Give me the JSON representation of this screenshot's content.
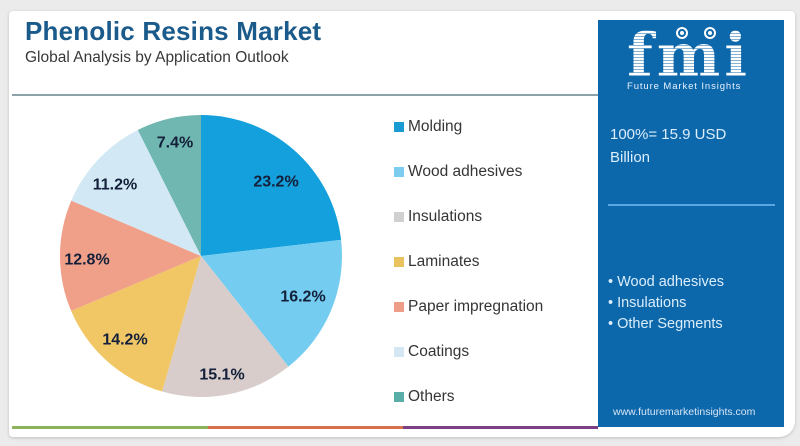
{
  "header": {
    "title": "Phenolic Resins Market",
    "subtitle": "Global Analysis by Application Outlook"
  },
  "chart_data": {
    "type": "pie",
    "title": "Phenolic Resins Market",
    "subtitle": "Global Analysis by Application Outlook",
    "categories": [
      "Molding",
      "Wood adhesives",
      "Insulations",
      "Laminates",
      "Paper impregnation",
      "Coatings",
      "Others"
    ],
    "values": [
      23.2,
      16.2,
      15.1,
      14.2,
      12.8,
      11.2,
      7.4
    ],
    "labels": [
      "23.2%",
      "16.2%",
      "15.1%",
      "14.2%",
      "12.8%",
      "11.2%",
      "7.4%"
    ],
    "unit": "%",
    "colors": [
      "#13a0dc",
      "#74cdf0",
      "#d8cdcb",
      "#f1c766",
      "#f0a088",
      "#d2e9f5",
      "#70b7b1"
    ],
    "start_angle_deg": 0,
    "direction": "clockwise",
    "legend_position": "right",
    "label_positions": [
      [
        276,
        182
      ],
      [
        303,
        297
      ],
      [
        222,
        375
      ],
      [
        125,
        340
      ],
      [
        87,
        260
      ],
      [
        115,
        185
      ],
      [
        175,
        143
      ]
    ],
    "total": "100%= 15.9 USD Billion"
  },
  "legend": {
    "items": [
      {
        "label": "Molding",
        "color": "#1b9bd4"
      },
      {
        "label": "Wood adhesives",
        "color": "#7cccf0"
      },
      {
        "label": "Insulations",
        "color": "#d0d0d0"
      },
      {
        "label": "Laminates",
        "color": "#e9c35f"
      },
      {
        "label": "Paper impregnation",
        "color": "#ee9d88"
      },
      {
        "label": "Coatings",
        "color": "#d3e8f3"
      },
      {
        "label": "Others",
        "color": "#5aaea8"
      }
    ]
  },
  "side_panel": {
    "logo_text": "fmi",
    "tagline": "Future Market Insights",
    "total_line1": "100%= 15.9 USD",
    "total_line2": "Billion",
    "highlights": [
      "Wood adhesives",
      "Insulations",
      "Other Segments"
    ],
    "website": "www.futuremarketinsights.com",
    "background": "#0d67ab"
  },
  "footer_bar": [
    {
      "color": "#8db35a"
    },
    {
      "color": "#d8704c"
    },
    {
      "color": "#7b3f84"
    }
  ]
}
